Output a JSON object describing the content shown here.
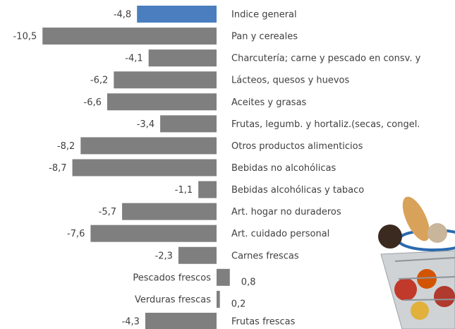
{
  "chart_data": {
    "type": "bar",
    "categories": [
      "Indice general",
      "Pan y cereales",
      "Charcutería; carne y pescado en consv. y",
      "Lácteos, quesos y huevos",
      "Aceites y grasas",
      "Frutas, legumb. y hortaliz.(secas, congel.",
      "Otros productos alimenticios",
      "Bebidas no alcohólicas",
      "Bebidas alcohólicas y tabaco",
      "Art. hogar no duraderos",
      "Art. cuidado personal",
      "Carnes frescas",
      "Pescados frescos",
      "Verduras frescas",
      "Frutas frescas"
    ],
    "values": [
      -4.8,
      -10.5,
      -4.1,
      -6.2,
      -6.6,
      -3.4,
      -8.2,
      -8.7,
      -1.1,
      -5.7,
      -7.6,
      -2.3,
      0.8,
      0.2,
      -4.3
    ],
    "value_labels": [
      "-4,8",
      "-10,5",
      "-4,1",
      "-6,2",
      "-6,6",
      "-3,4",
      "-8,2",
      "-8,7",
      "-1,1",
      "-5,7",
      "-7,6",
      "-2,3",
      "0,8",
      "0,2",
      "-4,3"
    ],
    "colors": [
      "#4a7ebf",
      "#7f7f7f",
      "#7f7f7f",
      "#7f7f7f",
      "#7f7f7f",
      "#7f7f7f",
      "#7f7f7f",
      "#7f7f7f",
      "#7f7f7f",
      "#7f7f7f",
      "#7f7f7f",
      "#7f7f7f",
      "#7f7f7f",
      "#7f7f7f",
      "#7f7f7f"
    ]
  }
}
